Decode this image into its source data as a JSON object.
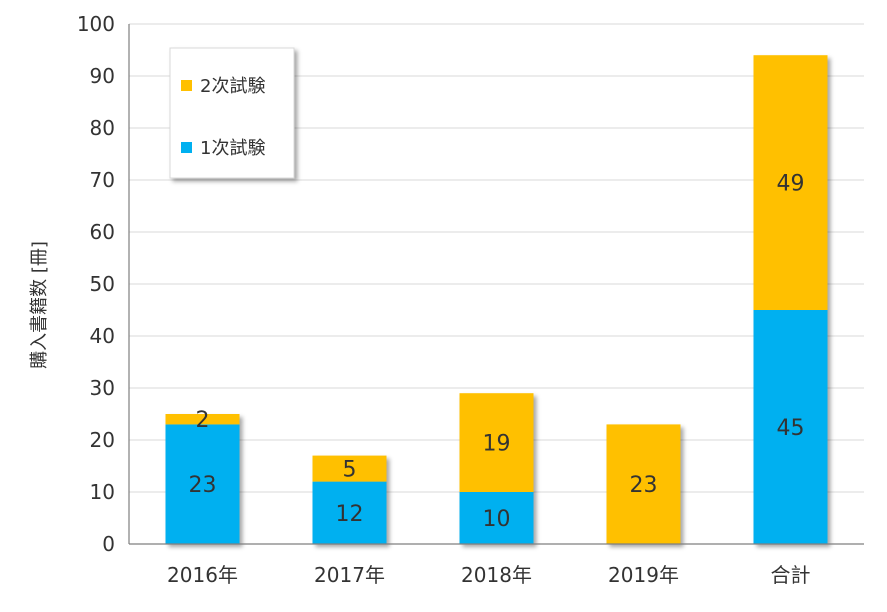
{
  "chart_data": {
    "type": "bar",
    "stacked": true,
    "title": "",
    "xlabel": "",
    "ylabel": "購入書籍数 [冊]",
    "ylim": [
      0,
      100
    ],
    "yticks": [
      0,
      10,
      20,
      30,
      40,
      50,
      60,
      70,
      80,
      90,
      100
    ],
    "grid": true,
    "legend_position": "top-left",
    "categories": [
      "2016年",
      "2017年",
      "2018年",
      "2019年",
      "合計"
    ],
    "series": [
      {
        "name": "1次試験",
        "color": "#00b0f0",
        "values": [
          23,
          12,
          10,
          0,
          45
        ],
        "labels": [
          "23",
          "12",
          "10",
          "",
          "45"
        ]
      },
      {
        "name": "2次試験",
        "color": "#ffc000",
        "values": [
          2,
          5,
          19,
          23,
          49
        ],
        "labels": [
          "2",
          "5",
          "19",
          "23",
          "49"
        ]
      }
    ],
    "legend_order": [
      1,
      0
    ]
  }
}
